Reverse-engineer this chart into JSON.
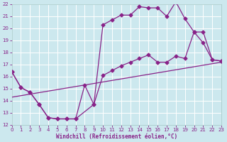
{
  "xlabel": "Windchill (Refroidissement éolien,°C)",
  "bg_color": "#cce8ee",
  "grid_color": "#aacccc",
  "line_color": "#882288",
  "xlim": [
    0,
    23
  ],
  "ylim": [
    12,
    22
  ],
  "xticks": [
    0,
    1,
    2,
    3,
    4,
    5,
    6,
    7,
    8,
    9,
    10,
    11,
    12,
    13,
    14,
    15,
    16,
    17,
    18,
    19,
    20,
    21,
    22,
    23
  ],
  "yticks": [
    12,
    13,
    14,
    15,
    16,
    17,
    18,
    19,
    20,
    21,
    22
  ],
  "curve1_x": [
    0,
    1,
    2,
    3,
    4,
    5,
    6,
    7,
    8,
    9,
    10,
    11,
    12,
    13,
    14,
    15,
    16,
    17,
    18,
    19,
    20,
    21,
    22,
    23
  ],
  "curve1_y": [
    16.4,
    15.1,
    14.7,
    13.7,
    12.6,
    12.5,
    12.5,
    12.5,
    15.3,
    13.7,
    20.3,
    20.7,
    21.1,
    21.1,
    21.8,
    21.7,
    21.7,
    21.0,
    22.2,
    20.8,
    19.7,
    18.8,
    17.4,
    17.3
  ],
  "curve2_x": [
    0,
    1,
    2,
    3,
    4,
    5,
    6,
    7,
    9,
    10,
    11,
    12,
    13,
    14,
    15,
    16,
    17,
    18,
    19,
    20,
    21,
    22,
    23
  ],
  "curve2_y": [
    16.4,
    15.1,
    14.7,
    13.7,
    12.6,
    12.5,
    12.5,
    12.5,
    13.7,
    16.1,
    16.5,
    16.9,
    17.2,
    17.5,
    17.8,
    17.2,
    17.2,
    17.7,
    17.5,
    19.7,
    19.7,
    17.4,
    17.3
  ],
  "curve3_x": [
    0,
    23
  ],
  "curve3_y": [
    14.3,
    17.2
  ]
}
